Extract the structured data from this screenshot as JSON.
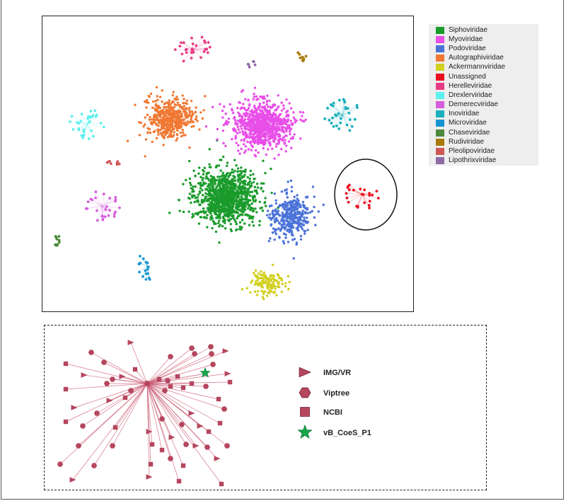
{
  "legend": {
    "items": [
      {
        "label": "Siphoviridae",
        "color": "#1a9b2b"
      },
      {
        "label": "Myoviridae",
        "color": "#e84ee8"
      },
      {
        "label": "Podoviridae",
        "color": "#4a72d8"
      },
      {
        "label": "Autographiviridae",
        "color": "#f07832"
      },
      {
        "label": "Ackermannviridae",
        "color": "#d2cf1e"
      },
      {
        "label": "Unassigned",
        "color": "#e81020"
      },
      {
        "label": "Herelleviridae",
        "color": "#e83c86"
      },
      {
        "label": "Drexlerviridae",
        "color": "#5ef0ee"
      },
      {
        "label": "Demerecviridae",
        "color": "#d45edc"
      },
      {
        "label": "Inoviridae",
        "color": "#18b0bc"
      },
      {
        "label": "Microviridae",
        "color": "#1694d2"
      },
      {
        "label": "Chaseviridae",
        "color": "#4a8a3a"
      },
      {
        "label": "Rudiviridae",
        "color": "#a87808"
      },
      {
        "label": "Pleolipoviridae",
        "color": "#cf5656"
      },
      {
        "label": "Lipothrixviridae",
        "color": "#8e6aa8"
      }
    ]
  },
  "detail": {
    "node_color": "#b5465e",
    "edge_color": "#cc5f78",
    "highlight_color": "#16a64a",
    "key": [
      {
        "label": "IMG/VR",
        "shape": "triangle-icon"
      },
      {
        "label": "Viptree",
        "shape": "hexagon-icon"
      },
      {
        "label": "NCBI",
        "shape": "square-icon"
      },
      {
        "label": "vB_CoeS_P1",
        "shape": "star-icon"
      }
    ]
  }
}
